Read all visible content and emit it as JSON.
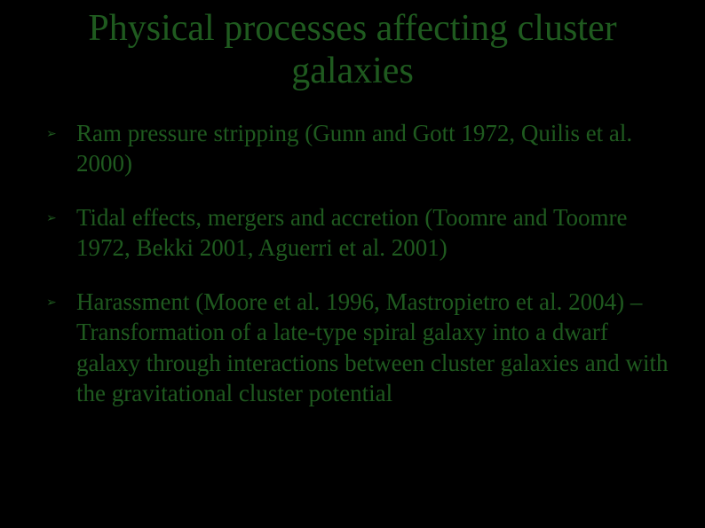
{
  "slide": {
    "title": "Physical processes affecting cluster galaxies",
    "bullet_marker": "➢",
    "bullets": [
      {
        "text": "Ram pressure stripping (Gunn and Gott 1972, Quilis et al. 2000)"
      },
      {
        "text": "Tidal effects, mergers and accretion (Toomre and Toomre 1972, Bekki 2001, Aguerri et al. 2001)"
      },
      {
        "text": "Harassment (Moore et al. 1996, Mastropietro et al. 2004) – Transformation of a late-type spiral galaxy into a dwarf galaxy through interactions between cluster galaxies and with the gravitational cluster potential"
      }
    ],
    "colors": {
      "background": "#000000",
      "text": "#1f5a1f"
    },
    "typography": {
      "font_family": "Times New Roman",
      "title_fontsize_pt": 32,
      "body_fontsize_pt": 20
    }
  }
}
